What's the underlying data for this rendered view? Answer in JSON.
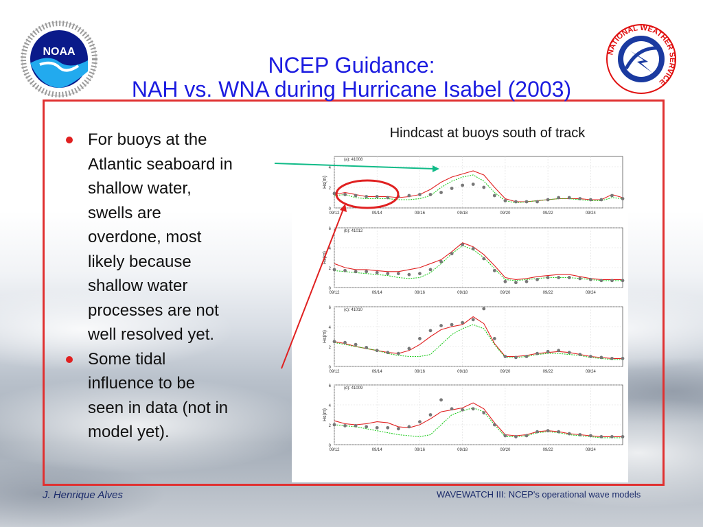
{
  "slide": {
    "title_line1": "NCEP Guidance:",
    "title_line2": "NAH vs. WNA during Hurricane Isabel (2003)",
    "bullets": [
      "For buoys at the\nAtlantic seaboard in\nshallow water,\nswells are\noverdone, most\nlikely because\nshallow water\nprocesses are not\nwell resolved yet.",
      "Some tidal\ninfluence to be\nseen in data (not in\nmodel yet)."
    ],
    "caption": "Hindcast at buoys south of track",
    "footer_left": "J. Henrique Alves",
    "footer_right": "WAVEWATCH III: NCEP's operational wave models"
  },
  "logos": {
    "noaa_text": "NOAA",
    "nws_text": "NATIONAL WEATHER SERVICE"
  },
  "colors": {
    "title": "#1c1ce0",
    "bullet": "#e02020",
    "frame": "#e03030",
    "model_red": "#e02020",
    "model_green": "#22cc22",
    "obs_gray": "#777777",
    "arrow_teal": "#11bb88",
    "arrow_red": "#e02020"
  },
  "chart_data": [
    {
      "type": "line",
      "panel_label": "(a): 41008",
      "ylabel": "Hs(m)",
      "x_ticks": [
        "09/12",
        "09/14",
        "09/16",
        "09/18",
        "09/20",
        "09/22",
        "09/24"
      ],
      "y_ticks": [
        0,
        2,
        4
      ],
      "xlim": [
        0,
        13.5
      ],
      "ylim": [
        0,
        5
      ],
      "series": [
        {
          "color_key": "model_red",
          "x": [
            0,
            0.5,
            1,
            1.5,
            2,
            2.5,
            3,
            3.5,
            4,
            4.5,
            5,
            5.5,
            6,
            6.5,
            7,
            7.5,
            8,
            8.5,
            9,
            9.5,
            10,
            10.5,
            11,
            11.5,
            12,
            12.5,
            13,
            13.5
          ],
          "values": [
            1.3,
            1.5,
            1.3,
            1.1,
            1.1,
            1.1,
            1.0,
            1.1,
            1.3,
            1.8,
            2.5,
            3.0,
            3.3,
            3.6,
            3.2,
            2.0,
            0.9,
            0.6,
            0.6,
            0.7,
            0.8,
            0.9,
            0.9,
            0.9,
            0.8,
            0.8,
            1.3,
            1.0
          ]
        },
        {
          "color_key": "model_green",
          "x": [
            0,
            0.5,
            1,
            1.5,
            2,
            2.5,
            3,
            3.5,
            4,
            4.5,
            5,
            5.5,
            6,
            6.5,
            7,
            7.5,
            8,
            8.5,
            9,
            9.5,
            10,
            10.5,
            11,
            11.5,
            12,
            12.5,
            13,
            13.5
          ],
          "values": [
            1.2,
            1.3,
            1.0,
            0.9,
            0.9,
            0.9,
            0.8,
            0.8,
            0.9,
            1.2,
            2.0,
            2.6,
            3.0,
            3.2,
            2.6,
            1.5,
            0.7,
            0.5,
            0.6,
            0.7,
            0.8,
            0.9,
            0.9,
            0.8,
            0.7,
            0.7,
            1.0,
            0.9
          ]
        },
        {
          "color_key": "obs_gray",
          "x": [
            0,
            0.5,
            1,
            1.5,
            2,
            2.5,
            3,
            3.5,
            4,
            4.5,
            5,
            5.5,
            6,
            6.5,
            7,
            7.5,
            8,
            8.5,
            9,
            9.5,
            10,
            10.5,
            11,
            11.5,
            12,
            12.5,
            13,
            13.5
          ],
          "values": [
            1.4,
            1.3,
            1.2,
            1.1,
            1.1,
            1.0,
            1.1,
            1.2,
            1.3,
            1.3,
            1.5,
            1.9,
            2.2,
            2.3,
            2.0,
            1.2,
            0.7,
            0.6,
            0.6,
            0.6,
            0.8,
            1.0,
            1.0,
            0.9,
            0.8,
            0.8,
            1.2,
            0.9
          ]
        }
      ]
    },
    {
      "type": "line",
      "panel_label": "(b): 41012",
      "ylabel": "Hs(m)",
      "x_ticks": [
        "09/12",
        "09/14",
        "09/16",
        "09/18",
        "09/20",
        "09/22",
        "09/24"
      ],
      "y_ticks": [
        0,
        2,
        4,
        6
      ],
      "xlim": [
        0,
        13.5
      ],
      "ylim": [
        0,
        6
      ],
      "series": [
        {
          "color_key": "model_red",
          "x": [
            0,
            0.5,
            1,
            1.5,
            2,
            2.5,
            3,
            3.5,
            4,
            4.5,
            5,
            5.5,
            6,
            6.5,
            7,
            7.5,
            8,
            8.5,
            9,
            9.5,
            10,
            10.5,
            11,
            11.5,
            12,
            12.5,
            13,
            13.5
          ],
          "values": [
            2.4,
            2.0,
            1.8,
            1.8,
            1.7,
            1.6,
            1.6,
            1.8,
            2.0,
            2.4,
            2.8,
            3.6,
            4.5,
            4.1,
            3.3,
            2.2,
            1.0,
            0.8,
            0.9,
            1.1,
            1.2,
            1.3,
            1.3,
            1.1,
            0.9,
            0.8,
            0.8,
            0.8
          ]
        },
        {
          "color_key": "model_green",
          "x": [
            0,
            0.5,
            1,
            1.5,
            2,
            2.5,
            3,
            3.5,
            4,
            4.5,
            5,
            5.5,
            6,
            6.5,
            7,
            7.5,
            8,
            8.5,
            9,
            9.5,
            10,
            10.5,
            11,
            11.5,
            12,
            12.5,
            13,
            13.5
          ],
          "values": [
            1.7,
            1.6,
            1.5,
            1.4,
            1.3,
            1.2,
            1.0,
            0.9,
            1.0,
            1.5,
            2.4,
            3.4,
            4.2,
            3.8,
            3.0,
            1.9,
            0.8,
            0.7,
            0.8,
            0.9,
            1.0,
            1.0,
            1.0,
            0.9,
            0.8,
            0.7,
            0.7,
            0.7
          ]
        },
        {
          "color_key": "obs_gray",
          "x": [
            0,
            0.5,
            1,
            1.5,
            2,
            2.5,
            3,
            3.5,
            4,
            4.5,
            5,
            5.5,
            6,
            6.5,
            7,
            7.5,
            8,
            8.5,
            9,
            9.5,
            10,
            10.5,
            11,
            11.5,
            12,
            12.5,
            13,
            13.5
          ],
          "values": [
            1.8,
            1.7,
            1.6,
            1.6,
            1.5,
            1.4,
            1.4,
            1.3,
            1.4,
            1.8,
            2.6,
            3.4,
            4.3,
            3.9,
            2.9,
            1.7,
            0.6,
            0.5,
            0.6,
            0.8,
            1.0,
            1.0,
            1.0,
            0.9,
            0.8,
            0.7,
            0.7,
            0.7
          ]
        }
      ]
    },
    {
      "type": "line",
      "panel_label": "(c): 41010",
      "ylabel": "Hs(m)",
      "x_ticks": [
        "09/12",
        "09/14",
        "09/16",
        "09/18",
        "09/20",
        "09/22",
        "09/24"
      ],
      "y_ticks": [
        0,
        2,
        4,
        6
      ],
      "xlim": [
        0,
        13.5
      ],
      "ylim": [
        0,
        6
      ],
      "series": [
        {
          "color_key": "model_red",
          "x": [
            0,
            0.5,
            1,
            1.5,
            2,
            2.5,
            3,
            3.5,
            4,
            4.5,
            5,
            5.5,
            6,
            6.5,
            7,
            7.5,
            8,
            8.5,
            9,
            9.5,
            10,
            10.5,
            11,
            11.5,
            12,
            12.5,
            13,
            13.5
          ],
          "values": [
            2.5,
            2.3,
            2.0,
            1.8,
            1.6,
            1.4,
            1.3,
            1.6,
            2.2,
            3.0,
            3.7,
            4.0,
            4.2,
            5.0,
            4.3,
            2.3,
            1.0,
            1.0,
            1.1,
            1.3,
            1.4,
            1.5,
            1.4,
            1.2,
            1.0,
            0.9,
            0.8,
            0.8
          ]
        },
        {
          "color_key": "model_green",
          "x": [
            0,
            0.5,
            1,
            1.5,
            2,
            2.5,
            3,
            3.5,
            4,
            4.5,
            5,
            5.5,
            6,
            6.5,
            7,
            7.5,
            8,
            8.5,
            9,
            9.5,
            10,
            10.5,
            11,
            11.5,
            12,
            12.5,
            13,
            13.5
          ],
          "values": [
            2.4,
            2.2,
            2.0,
            1.8,
            1.6,
            1.3,
            1.1,
            1.0,
            1.0,
            1.2,
            2.2,
            3.2,
            3.8,
            4.2,
            3.8,
            2.2,
            0.9,
            0.9,
            1.0,
            1.2,
            1.3,
            1.3,
            1.2,
            1.1,
            0.9,
            0.8,
            0.7,
            0.7
          ]
        },
        {
          "color_key": "obs_gray",
          "x": [
            0,
            0.5,
            1,
            1.5,
            2,
            2.5,
            3,
            3.5,
            4,
            4.5,
            5,
            5.5,
            6,
            6.5,
            7,
            7.5,
            8,
            8.5,
            9,
            9.5,
            10,
            10.5,
            11,
            11.5,
            12,
            12.5,
            13,
            13.5
          ],
          "values": [
            2.5,
            2.4,
            2.2,
            1.9,
            1.6,
            1.4,
            1.3,
            1.8,
            2.8,
            3.6,
            4.1,
            4.2,
            4.4,
            4.7,
            5.8,
            2.8,
            1.0,
            0.9,
            1.0,
            1.3,
            1.5,
            1.6,
            1.4,
            1.2,
            1.0,
            0.9,
            0.8,
            0.8
          ]
        }
      ]
    },
    {
      "type": "line",
      "panel_label": "(d): 41009",
      "ylabel": "Hs(m)",
      "x_ticks": [
        "09/12",
        "09/14",
        "09/16",
        "09/18",
        "09/20",
        "09/22",
        "09/24"
      ],
      "y_ticks": [
        0,
        2,
        4,
        6
      ],
      "xlim": [
        0,
        13.5
      ],
      "ylim": [
        0,
        6
      ],
      "series": [
        {
          "color_key": "model_red",
          "x": [
            0,
            0.5,
            1,
            1.5,
            2,
            2.5,
            3,
            3.5,
            4,
            4.5,
            5,
            5.5,
            6,
            6.5,
            7,
            7.5,
            8,
            8.5,
            9,
            9.5,
            10,
            10.5,
            11,
            11.5,
            12,
            12.5,
            13,
            13.5
          ],
          "values": [
            2.4,
            2.1,
            2.0,
            2.1,
            2.3,
            2.2,
            1.8,
            1.7,
            2.0,
            2.6,
            3.3,
            3.5,
            3.7,
            4.2,
            3.6,
            2.2,
            1.0,
            0.9,
            1.0,
            1.3,
            1.4,
            1.3,
            1.1,
            1.0,
            0.9,
            0.8,
            0.8,
            0.8
          ]
        },
        {
          "color_key": "model_green",
          "x": [
            0,
            0.5,
            1,
            1.5,
            2,
            2.5,
            3,
            3.5,
            4,
            4.5,
            5,
            5.5,
            6,
            6.5,
            7,
            7.5,
            8,
            8.5,
            9,
            9.5,
            10,
            10.5,
            11,
            11.5,
            12,
            12.5,
            13,
            13.5
          ],
          "values": [
            2.0,
            1.9,
            1.8,
            1.6,
            1.4,
            1.2,
            1.0,
            0.9,
            0.8,
            1.0,
            2.0,
            3.0,
            3.4,
            3.7,
            3.3,
            2.0,
            0.8,
            0.8,
            0.9,
            1.2,
            1.3,
            1.2,
            1.0,
            0.9,
            0.8,
            0.7,
            0.7,
            0.7
          ]
        },
        {
          "color_key": "obs_gray",
          "x": [
            0,
            0.5,
            1,
            1.5,
            2,
            2.5,
            3,
            3.5,
            4,
            4.5,
            5,
            5.5,
            6,
            6.5,
            7,
            7.5,
            8,
            8.5,
            9,
            9.5,
            10,
            10.5,
            11,
            11.5,
            12,
            12.5,
            13,
            13.5
          ],
          "values": [
            2.0,
            1.9,
            1.9,
            1.8,
            1.7,
            1.7,
            1.6,
            1.8,
            2.3,
            3.0,
            4.5,
            3.6,
            3.5,
            3.6,
            3.2,
            2.0,
            0.9,
            0.8,
            0.9,
            1.3,
            1.4,
            1.3,
            1.1,
            1.0,
            0.9,
            0.8,
            0.8,
            0.8
          ]
        }
      ]
    }
  ]
}
